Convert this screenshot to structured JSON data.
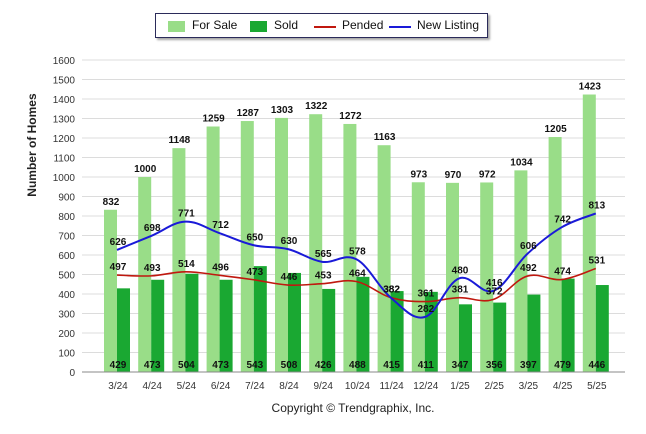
{
  "chart_data": {
    "type": "bar",
    "ylabel": "Number of Homes",
    "ylim": [
      0,
      1600
    ],
    "yticks": [
      0,
      100,
      200,
      300,
      400,
      500,
      600,
      700,
      800,
      900,
      1000,
      1100,
      1200,
      1300,
      1400,
      1500,
      1600
    ],
    "grid": true,
    "legend_position": "top-center",
    "categories": [
      "3/24",
      "4/24",
      "5/24",
      "6/24",
      "7/24",
      "8/24",
      "9/24",
      "10/24",
      "11/24",
      "12/24",
      "1/25",
      "2/25",
      "3/25",
      "4/25",
      "5/25"
    ],
    "series": [
      {
        "name": "For Sale",
        "kind": "bar",
        "color": "#99dd88",
        "values": [
          832,
          1000,
          1148,
          1259,
          1287,
          1303,
          1322,
          1272,
          1163,
          973,
          970,
          972,
          1034,
          1205,
          1423
        ]
      },
      {
        "name": "Sold",
        "kind": "bar",
        "color": "#1aa832",
        "values": [
          429,
          473,
          504,
          473,
          543,
          508,
          426,
          488,
          415,
          411,
          347,
          356,
          397,
          479,
          446
        ]
      },
      {
        "name": "Pended",
        "kind": "line",
        "color": "#c0180f",
        "values": [
          497,
          493,
          514,
          496,
          473,
          446,
          453,
          464,
          382,
          361,
          381,
          372,
          492,
          474,
          531
        ]
      },
      {
        "name": "New Listing",
        "kind": "line",
        "color": "#1a1ad8",
        "values": [
          626,
          698,
          771,
          712,
          650,
          630,
          565,
          578,
          382,
          282,
          480,
          416,
          606,
          742,
          813
        ]
      }
    ]
  },
  "footer": "Copyright © Trendgraphix, Inc."
}
